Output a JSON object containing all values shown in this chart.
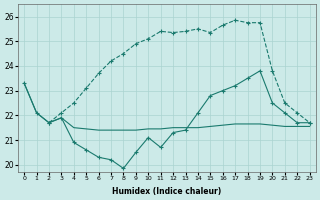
{
  "xlabel": "Humidex (Indice chaleur)",
  "background_color": "#cceae8",
  "grid_color": "#aad4d0",
  "line_color": "#1a7a6e",
  "xlim": [
    -0.5,
    23.5
  ],
  "ylim": [
    19.7,
    26.5
  ],
  "yticks": [
    20,
    21,
    22,
    23,
    24,
    25,
    26
  ],
  "xticks": [
    0,
    1,
    2,
    3,
    4,
    5,
    6,
    7,
    8,
    9,
    10,
    11,
    12,
    13,
    14,
    15,
    16,
    17,
    18,
    19,
    20,
    21,
    22,
    23
  ],
  "series": [
    {
      "x": [
        0,
        1,
        2,
        3,
        4,
        5,
        6,
        7,
        8,
        9,
        10,
        11,
        12,
        13,
        14,
        15,
        16,
        17,
        18,
        19,
        20,
        21,
        22,
        23
      ],
      "y": [
        23.3,
        22.1,
        21.7,
        21.9,
        20.9,
        20.6,
        20.3,
        20.2,
        19.85,
        20.5,
        21.1,
        20.7,
        21.3,
        21.4,
        22.1,
        22.8,
        23.0,
        23.2,
        23.5,
        23.8,
        22.5,
        22.1,
        21.7,
        21.7
      ],
      "marker": true,
      "dashed": false
    },
    {
      "x": [
        0,
        1,
        2,
        3,
        4,
        5,
        6,
        7,
        8,
        9,
        10,
        11,
        12,
        13,
        14,
        15,
        16,
        17,
        18,
        19,
        20,
        21,
        22,
        23
      ],
      "y": [
        23.3,
        22.1,
        21.7,
        21.9,
        21.5,
        21.45,
        21.4,
        21.4,
        21.4,
        21.4,
        21.45,
        21.45,
        21.5,
        21.5,
        21.5,
        21.55,
        21.6,
        21.65,
        21.65,
        21.65,
        21.6,
        21.55,
        21.55,
        21.55
      ],
      "marker": false,
      "dashed": false
    },
    {
      "x": [
        2,
        3,
        4,
        5,
        6,
        7,
        8,
        9,
        10,
        11,
        12,
        13,
        14,
        15,
        16,
        17,
        18,
        19,
        20,
        21,
        22,
        23
      ],
      "y": [
        21.7,
        22.1,
        22.5,
        23.1,
        23.7,
        24.2,
        24.5,
        24.9,
        25.1,
        25.4,
        25.35,
        25.4,
        25.5,
        25.35,
        25.65,
        25.85,
        25.75,
        25.75,
        23.8,
        22.5,
        22.1,
        21.7
      ],
      "marker": true,
      "dashed": true
    }
  ]
}
